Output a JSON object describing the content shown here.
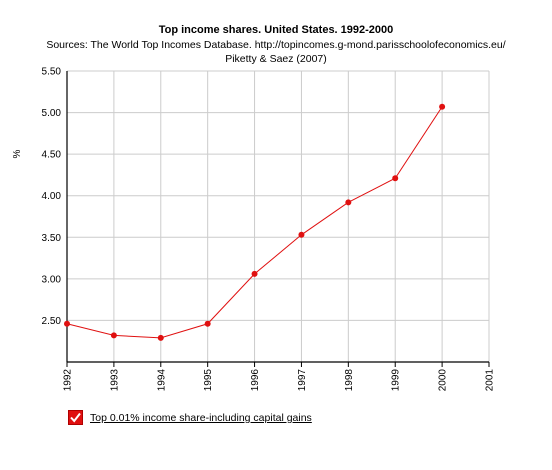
{
  "chart_data": {
    "type": "line",
    "title": "Top income shares. United States. 1992-2000",
    "subtitle_lines": [
      "Sources: The World Top Incomes Database. http://topincomes.g-mond.parisschoolofeconomics.eu/",
      "Piketty & Saez (2007)"
    ],
    "ylabel": "%",
    "xlabel": "",
    "x_ticks": [
      "1992",
      "1993",
      "1994",
      "1995",
      "1996",
      "1997",
      "1998",
      "1999",
      "2000",
      "2001"
    ],
    "xlim": [
      1992,
      2001
    ],
    "y_ticks": [
      "2.50",
      "3.00",
      "3.50",
      "4.00",
      "4.50",
      "5.00",
      "5.50"
    ],
    "ylim": [
      2.0,
      5.5
    ],
    "grid": true,
    "legend_position": "bottom-left",
    "series": [
      {
        "name": "Top 0.01% income share-including capital gains",
        "color": "#e01010",
        "x": [
          1992,
          1993,
          1994,
          1995,
          1996,
          1997,
          1998,
          1999,
          2000
        ],
        "values": [
          2.46,
          2.32,
          2.29,
          2.46,
          3.06,
          3.53,
          3.92,
          4.21,
          5.07
        ]
      }
    ]
  },
  "legend": {
    "checked": true,
    "icon": "checkbox-checked-icon",
    "check_color": "#e01010"
  }
}
